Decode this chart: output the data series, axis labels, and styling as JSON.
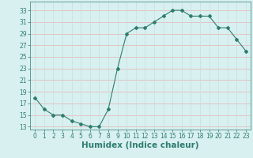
{
  "x": [
    0,
    1,
    2,
    3,
    4,
    5,
    6,
    7,
    8,
    9,
    10,
    11,
    12,
    13,
    14,
    15,
    16,
    17,
    18,
    19,
    20,
    21,
    22,
    23
  ],
  "y": [
    18,
    16,
    15,
    15,
    14,
    13.5,
    13,
    13,
    16,
    23,
    29,
    30,
    30,
    31,
    32,
    33,
    33,
    32,
    32,
    32,
    30,
    30,
    28,
    26
  ],
  "line_color": "#2e7d6e",
  "marker": "D",
  "marker_size": 2.0,
  "bg_color": "#d8f0f0",
  "grid_color_h": "#e8b0b0",
  "grid_color_v": "#c8dede",
  "xlabel": "Humidex (Indice chaleur)",
  "xlabel_color": "#2e7d6e",
  "xlabel_fontsize": 7.5,
  "ytick_values": [
    13,
    15,
    17,
    19,
    21,
    23,
    25,
    27,
    29,
    31,
    33
  ],
  "ylim": [
    12.5,
    34.5
  ],
  "xlim": [
    -0.5,
    23.5
  ],
  "xtick_labels": [
    "0",
    "1",
    "2",
    "3",
    "4",
    "5",
    "6",
    "7",
    "8",
    "9",
    "10",
    "11",
    "12",
    "13",
    "14",
    "15",
    "16",
    "17",
    "18",
    "19",
    "20",
    "21",
    "22",
    "23"
  ],
  "tick_color": "#2e7d6e",
  "tick_fontsize": 5.5,
  "linewidth": 0.8
}
